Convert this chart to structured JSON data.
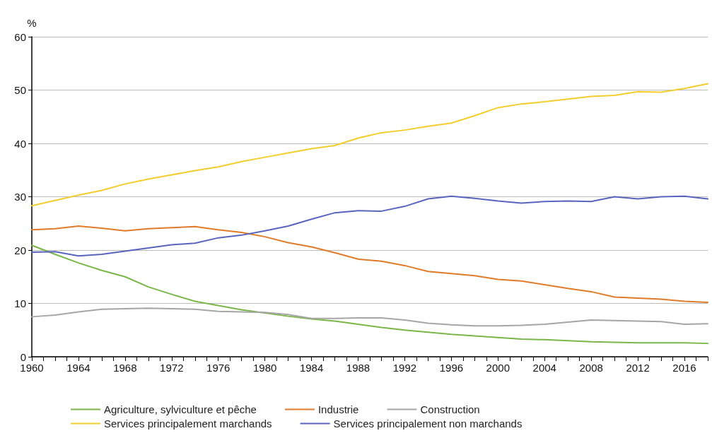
{
  "chart_data": {
    "type": "line",
    "ylabel": "%",
    "x": [
      1960,
      1962,
      1964,
      1966,
      1968,
      1970,
      1972,
      1974,
      1976,
      1978,
      1980,
      1982,
      1984,
      1986,
      1988,
      1990,
      1992,
      1994,
      1996,
      1998,
      2000,
      2002,
      2004,
      2006,
      2008,
      2010,
      2012,
      2014,
      2016,
      2018
    ],
    "series": [
      {
        "name": "Agriculture, sylviculture et pêche",
        "color": "#7ab648",
        "values": [
          20.9,
          19.2,
          17.6,
          16.2,
          15.0,
          13.1,
          11.7,
          10.4,
          9.6,
          8.8,
          8.2,
          7.6,
          7.1,
          6.7,
          6.1,
          5.5,
          5.0,
          4.6,
          4.2,
          3.9,
          3.6,
          3.3,
          3.2,
          3.0,
          2.8,
          2.7,
          2.6,
          2.6,
          2.6,
          2.5
        ]
      },
      {
        "name": "Industrie",
        "color": "#e07b2a",
        "values": [
          23.8,
          24.0,
          24.5,
          24.1,
          23.6,
          24.0,
          24.2,
          24.4,
          23.8,
          23.3,
          22.5,
          21.4,
          20.6,
          19.5,
          18.3,
          17.9,
          17.1,
          16.0,
          15.6,
          15.2,
          14.5,
          14.2,
          13.5,
          12.8,
          12.2,
          11.2,
          11.0,
          10.8,
          10.4,
          10.2
        ]
      },
      {
        "name": "Construction",
        "color": "#a6a6a6",
        "values": [
          7.5,
          7.8,
          8.4,
          8.9,
          9.0,
          9.1,
          9.0,
          8.9,
          8.5,
          8.4,
          8.3,
          7.9,
          7.2,
          7.2,
          7.3,
          7.3,
          6.9,
          6.3,
          6.0,
          5.8,
          5.8,
          5.9,
          6.1,
          6.5,
          6.9,
          6.8,
          6.7,
          6.6,
          6.1,
          6.2
        ]
      },
      {
        "name": "Services principalement marchands",
        "color": "#f2cd2e",
        "values": [
          28.3,
          29.3,
          30.3,
          31.2,
          32.4,
          33.3,
          34.1,
          34.9,
          35.6,
          36.6,
          37.4,
          38.2,
          39.0,
          39.6,
          41.0,
          42.0,
          42.5,
          43.2,
          43.8,
          45.2,
          46.7,
          47.4,
          47.8,
          48.3,
          48.8,
          49.0,
          49.7,
          49.6,
          50.3,
          51.2
        ]
      },
      {
        "name": "Services principalement non marchands",
        "color": "#5a64be",
        "values": [
          19.6,
          19.7,
          18.9,
          19.2,
          19.8,
          20.4,
          21.0,
          21.3,
          22.3,
          22.8,
          23.6,
          24.5,
          25.8,
          27.0,
          27.4,
          27.3,
          28.2,
          29.6,
          30.1,
          29.7,
          29.2,
          28.8,
          29.1,
          29.2,
          29.1,
          30.0,
          29.6,
          30.0,
          30.1,
          29.6
        ]
      }
    ],
    "xlim": [
      1960,
      2018
    ],
    "xticks": [
      1960,
      {
        "value": 1961,
        "label": null
      },
      {
        "value": 1962,
        "label": null
      },
      {
        "value": 1963,
        "label": null
      },
      1964,
      {
        "value": 1965,
        "label": null
      },
      {
        "value": 1966,
        "label": null
      },
      {
        "value": 1967,
        "label": null
      },
      1968,
      {
        "value": 1969,
        "label": null
      },
      {
        "value": 1970,
        "label": null
      },
      {
        "value": 1971,
        "label": null
      },
      1972,
      {
        "value": 1973,
        "label": null
      },
      {
        "value": 1974,
        "label": null
      },
      {
        "value": 1975,
        "label": null
      },
      1976,
      {
        "value": 1977,
        "label": null
      },
      {
        "value": 1978,
        "label": null
      },
      {
        "value": 1979,
        "label": null
      },
      1980,
      {
        "value": 1981,
        "label": null
      },
      {
        "value": 1982,
        "label": null
      },
      {
        "value": 1983,
        "label": null
      },
      1984,
      {
        "value": 1985,
        "label": null
      },
      {
        "value": 1986,
        "label": null
      },
      {
        "value": 1987,
        "label": null
      },
      1988,
      {
        "value": 1989,
        "label": null
      },
      {
        "value": 1990,
        "label": null
      },
      {
        "value": 1991,
        "label": null
      },
      1992,
      {
        "value": 1993,
        "label": null
      },
      {
        "value": 1994,
        "label": null
      },
      {
        "value": 1995,
        "label": null
      },
      1996,
      {
        "value": 1997,
        "label": null
      },
      {
        "value": 1998,
        "label": null
      },
      {
        "value": 1999,
        "label": null
      },
      2000,
      {
        "value": 2001,
        "label": null
      },
      {
        "value": 2002,
        "label": null
      },
      {
        "value": 2003,
        "label": null
      },
      2004,
      {
        "value": 2005,
        "label": null
      },
      {
        "value": 2006,
        "label": null
      },
      {
        "value": 2007,
        "label": null
      },
      2008,
      {
        "value": 2009,
        "label": null
      },
      {
        "value": 2010,
        "label": null
      },
      {
        "value": 2011,
        "label": null
      },
      2012,
      {
        "value": 2013,
        "label": null
      },
      {
        "value": 2014,
        "label": null
      },
      {
        "value": 2015,
        "label": null
      },
      2016,
      {
        "value": 2017,
        "label": null
      },
      {
        "value": 2018,
        "label": null
      }
    ],
    "ylim": [
      0,
      60
    ],
    "yticks": [
      0,
      10,
      20,
      30,
      40,
      50,
      60
    ],
    "grid": "y",
    "legend": "bottom",
    "marker": "none",
    "line_style": "solid"
  }
}
